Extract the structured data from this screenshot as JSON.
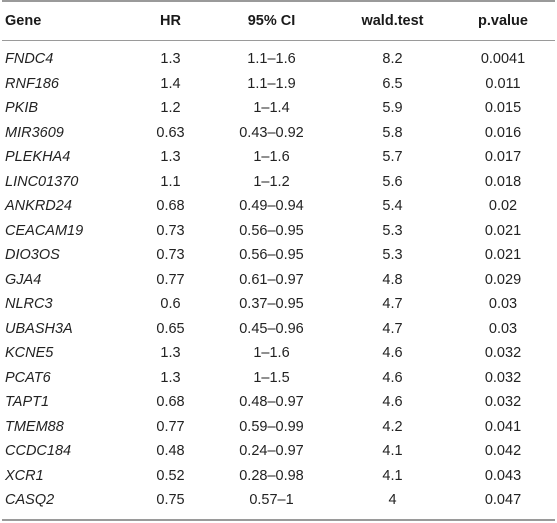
{
  "table": {
    "headers": [
      "Gene",
      "HR",
      "95% CI",
      "wald.test",
      "p.value"
    ],
    "rows": [
      [
        "FNDC4",
        "1.3",
        "1.1–1.6",
        "8.2",
        "0.0041"
      ],
      [
        "RNF186",
        "1.4",
        "1.1–1.9",
        "6.5",
        "0.011"
      ],
      [
        "PKIB",
        "1.2",
        "1–1.4",
        "5.9",
        "0.015"
      ],
      [
        "MIR3609",
        "0.63",
        "0.43–0.92",
        "5.8",
        "0.016"
      ],
      [
        "PLEKHA4",
        "1.3",
        "1–1.6",
        "5.7",
        "0.017"
      ],
      [
        "LINC01370",
        "1.1",
        "1–1.2",
        "5.6",
        "0.018"
      ],
      [
        "ANKRD24",
        "0.68",
        "0.49–0.94",
        "5.4",
        "0.02"
      ],
      [
        "CEACAM19",
        "0.73",
        "0.56–0.95",
        "5.3",
        "0.021"
      ],
      [
        "DIO3OS",
        "0.73",
        "0.56–0.95",
        "5.3",
        "0.021"
      ],
      [
        "GJA4",
        "0.77",
        "0.61–0.97",
        "4.8",
        "0.029"
      ],
      [
        "NLRC3",
        "0.6",
        "0.37–0.95",
        "4.7",
        "0.03"
      ],
      [
        "UBASH3A",
        "0.65",
        "0.45–0.96",
        "4.7",
        "0.03"
      ],
      [
        "KCNE5",
        "1.3",
        "1–1.6",
        "4.6",
        "0.032"
      ],
      [
        "PCAT6",
        "1.3",
        "1–1.5",
        "4.6",
        "0.032"
      ],
      [
        "TAPT1",
        "0.68",
        "0.48–0.97",
        "4.6",
        "0.032"
      ],
      [
        "TMEM88",
        "0.77",
        "0.59–0.99",
        "4.2",
        "0.041"
      ],
      [
        "CCDC184",
        "0.48",
        "0.24–0.97",
        "4.1",
        "0.042"
      ],
      [
        "XCR1",
        "0.52",
        "0.28–0.98",
        "4.1",
        "0.043"
      ],
      [
        "CASQ2",
        "0.75",
        "0.57–1",
        "4",
        "0.047"
      ]
    ]
  }
}
